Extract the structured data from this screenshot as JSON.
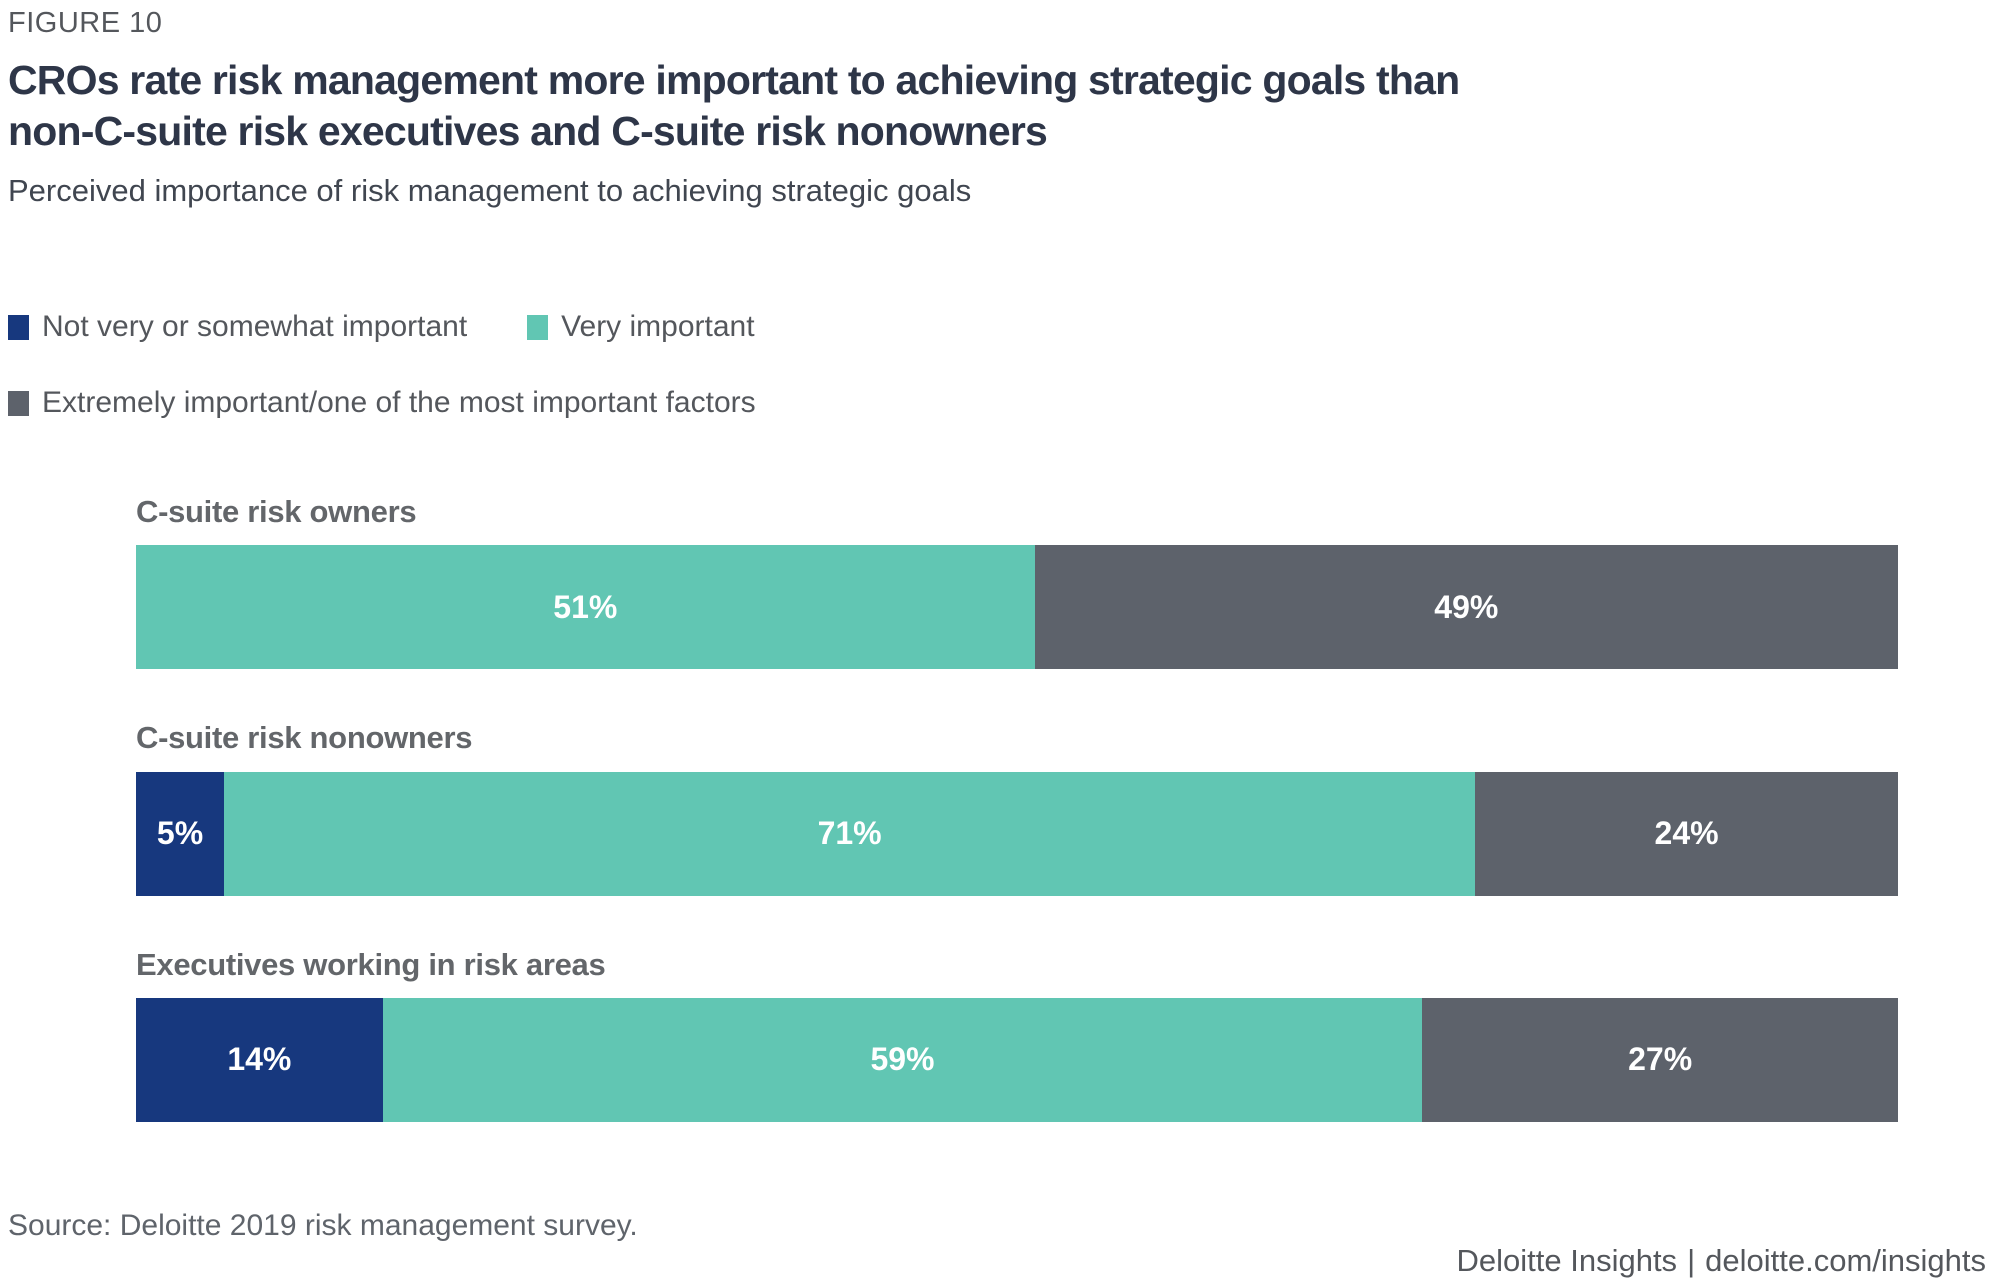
{
  "figure_label": "FIGURE 10",
  "title_lines": [
    "CROs rate risk management more important to achieving strategic goals than",
    "non-C-suite risk executives and C-suite risk nonowners"
  ],
  "subtitle": "Perceived importance of risk management to achieving strategic goals",
  "legend": [
    {
      "label": "Not very or somewhat important",
      "color": "#17387E",
      "row": 1
    },
    {
      "label": "Very important",
      "color": "#61C6B3",
      "row": 1
    },
    {
      "label": "Extremely important/one of the most important factors",
      "color": "#5D626B",
      "row": 2
    }
  ],
  "chart_data": {
    "type": "bar",
    "orientation": "horizontal",
    "stacked": true,
    "unit": "%",
    "xlim": [
      0,
      100
    ],
    "grid": false,
    "legend_position": "top-left",
    "value_labels": "inside, white, bold",
    "categories": [
      "C-suite risk owners",
      "C-suite risk nonowners",
      "Executives working in risk areas"
    ],
    "series": [
      {
        "name": "Not very or somewhat important",
        "color": "#17387E",
        "values": [
          0,
          5,
          14
        ]
      },
      {
        "name": "Very important",
        "color": "#61C6B3",
        "values": [
          51,
          71,
          59
        ]
      },
      {
        "name": "Extremely important/one of the most important factors",
        "color": "#5D626B",
        "values": [
          49,
          24,
          27
        ]
      }
    ]
  },
  "source": "Source: Deloitte 2019 risk management survey.",
  "footer": {
    "brand": "Deloitte Insights",
    "separator": "|",
    "link": "deloitte.com/insights"
  }
}
